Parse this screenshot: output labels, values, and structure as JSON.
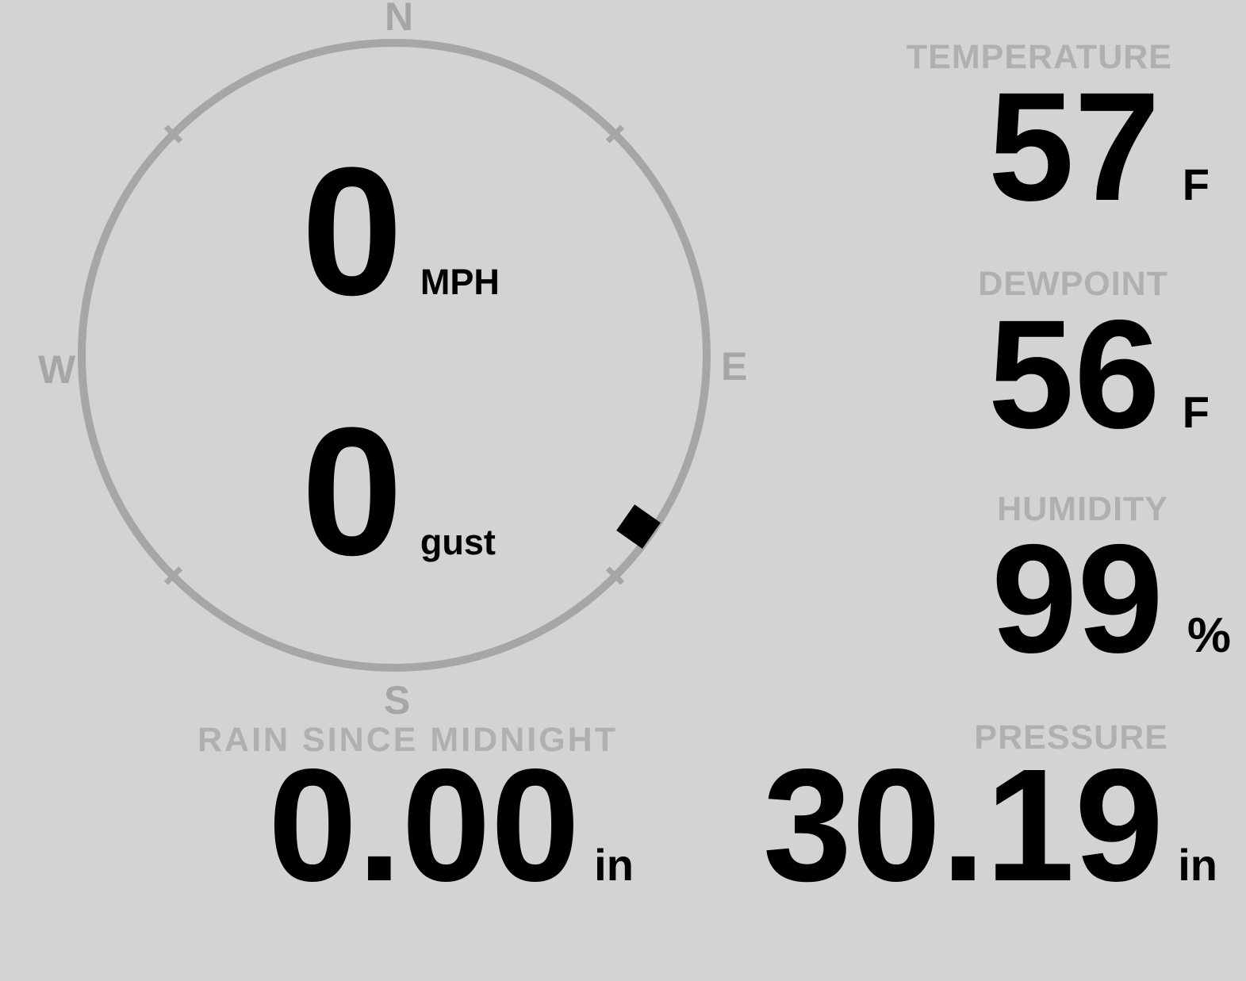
{
  "colors": {
    "background": "#d3d3d3",
    "gauge_gray": "#a6a6a6",
    "label_gray": "#b0b0b0",
    "value_black": "#000000"
  },
  "wind": {
    "speed": "0",
    "speed_unit": "MPH",
    "gust": "0",
    "gust_unit": "gust",
    "direction_deg": 125,
    "cardinals": {
      "north": "N",
      "east": "E",
      "south": "S",
      "west": "W"
    }
  },
  "stats": {
    "temperature": {
      "label": "TEMPERATURE",
      "value": "57",
      "unit": "F"
    },
    "dewpoint": {
      "label": "DEWPOINT",
      "value": "56",
      "unit": "F"
    },
    "humidity": {
      "label": "HUMIDITY",
      "value": "99",
      "unit": "%"
    },
    "rain": {
      "label": "RAIN SINCE MIDNIGHT",
      "value": "0.00",
      "unit": "in"
    },
    "pressure": {
      "label": "PRESSURE",
      "value": "30.19",
      "unit": "in"
    }
  }
}
